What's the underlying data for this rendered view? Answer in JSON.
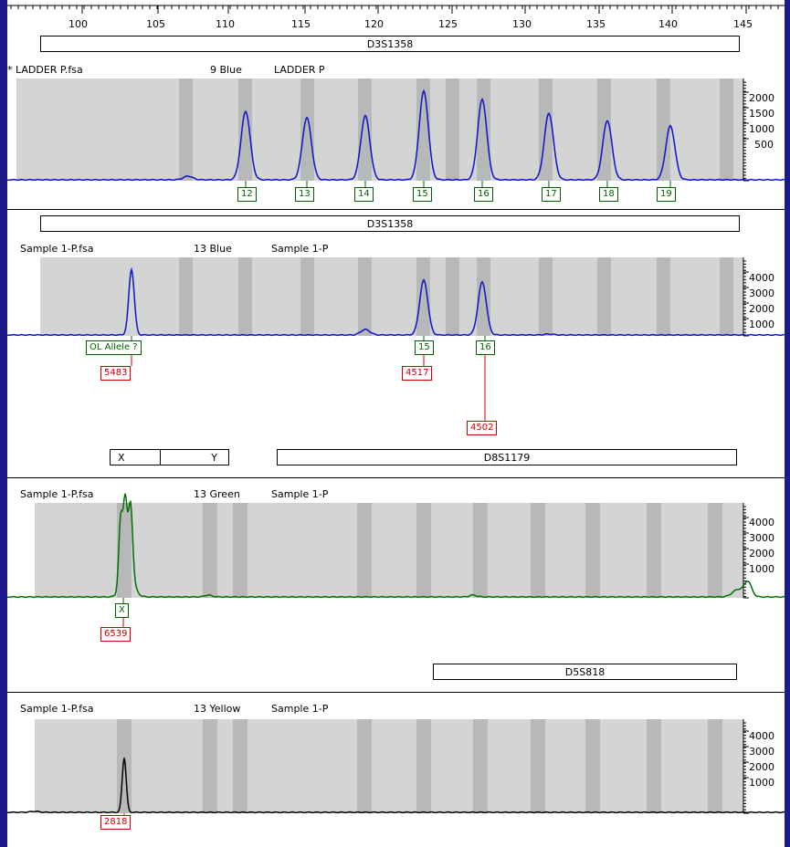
{
  "ruler": {
    "ticks": [
      "100",
      "105",
      "110",
      "115",
      "120",
      "125",
      "130",
      "135",
      "140",
      "145"
    ]
  },
  "panels": [
    {
      "marker": "D3S1358",
      "file": "* LADDER P.fsa",
      "dye": "9 Blue",
      "sample": "LADDER P",
      "y_ticks": [
        "2000",
        "1500",
        "1000",
        "500"
      ],
      "alleles": [
        "12",
        "13",
        "14",
        "15",
        "16",
        "17",
        "18",
        "19"
      ],
      "heights": []
    },
    {
      "marker": "D3S1358",
      "file": "Sample 1-P.fsa",
      "dye": "13 Blue",
      "sample": "Sample 1-P",
      "y_ticks": [
        "4000",
        "3000",
        "2000",
        "1000"
      ],
      "alleles": [
        "OL Allele ?",
        "15",
        "16"
      ],
      "heights": [
        "5483",
        "4517",
        "4502"
      ]
    },
    {
      "markers": [
        "X",
        "Y",
        "D8S1179"
      ],
      "file": "Sample 1-P.fsa",
      "dye": "13 Green",
      "sample": "Sample 1-P",
      "y_ticks": [
        "4000",
        "3000",
        "2000",
        "1000"
      ],
      "alleles": [
        "X"
      ],
      "heights": [
        "6539"
      ]
    },
    {
      "marker": "D5S818",
      "file": "Sample 1-P.fsa",
      "dye": "13 Yellow",
      "sample": "Sample 1-P",
      "y_ticks": [
        "4000",
        "3000",
        "2000",
        "1000"
      ],
      "alleles": [],
      "heights": [
        "2818"
      ]
    }
  ],
  "colors": {
    "blue": "#1010d0",
    "green": "#007000",
    "black": "#000000",
    "red": "#cc0000",
    "allele_green": "#006000",
    "bin": "#c8c8c8",
    "bin_dark": "#b4b4b4",
    "frame": "#1a1a8c"
  }
}
